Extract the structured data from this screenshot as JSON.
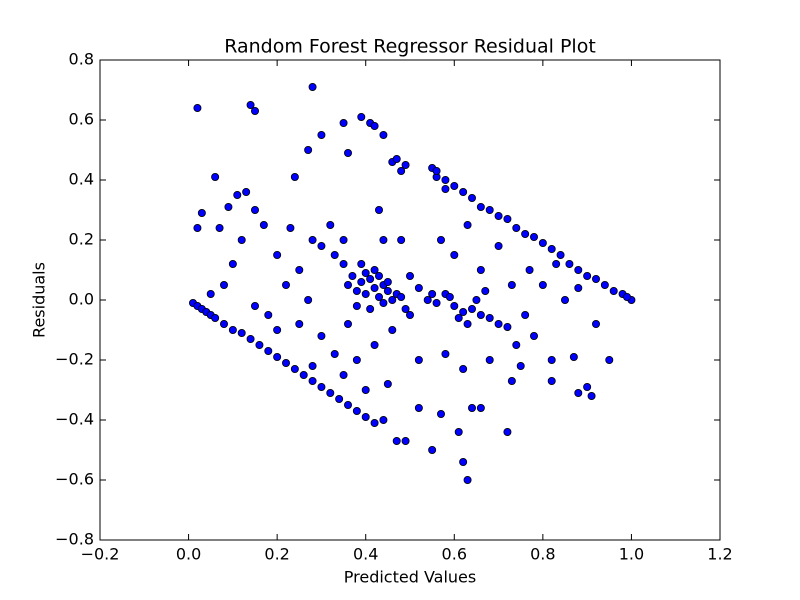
{
  "chart_data": {
    "type": "scatter",
    "title": "Random Forest Regressor Residual Plot",
    "x_label": "Predicted Values",
    "y_label": "Residuals",
    "color": "#0000ff",
    "xlim": [
      -0.2,
      1.2
    ],
    "ylim": [
      -0.8,
      0.8
    ],
    "xticks": [
      {
        "value": -0.2,
        "label": "−0.2"
      },
      {
        "value": 0.0,
        "label": "0.0"
      },
      {
        "value": 0.2,
        "label": "0.2"
      },
      {
        "value": 0.4,
        "label": "0.4"
      },
      {
        "value": 0.6,
        "label": "0.6"
      },
      {
        "value": 0.8,
        "label": "0.8"
      },
      {
        "value": 1.0,
        "label": "1.0"
      },
      {
        "value": 1.2,
        "label": "1.2"
      }
    ],
    "yticks": [
      {
        "value": -0.8,
        "label": "−0.8"
      },
      {
        "value": -0.6,
        "label": "−0.6"
      },
      {
        "value": -0.4,
        "label": "−0.4"
      },
      {
        "value": -0.2,
        "label": "−0.2"
      },
      {
        "value": 0.0,
        "label": "0.0"
      },
      {
        "value": 0.2,
        "label": "0.2"
      },
      {
        "value": 0.4,
        "label": "0.4"
      },
      {
        "value": 0.6,
        "label": "0.6"
      },
      {
        "value": 0.8,
        "label": "0.8"
      }
    ],
    "x": [
      0.02,
      0.14,
      0.15,
      0.28,
      0.3,
      0.27,
      0.35,
      0.36,
      0.39,
      0.41,
      0.42,
      0.44,
      0.46,
      0.47,
      0.48,
      0.49,
      0.55,
      0.56,
      0.58,
      0.06,
      0.24,
      0.62,
      0.63,
      0.55,
      0.61,
      0.72,
      0.57,
      0.64,
      0.66,
      0.47,
      0.49,
      0.52,
      0.9,
      0.91,
      0.88,
      0.95,
      0.87,
      0.82,
      0.75,
      0.73,
      0.01,
      0.02,
      0.03,
      0.04,
      0.05,
      0.06,
      0.08,
      0.1,
      0.12,
      0.14,
      0.16,
      0.18,
      0.2,
      0.22,
      0.24,
      0.26,
      0.28,
      0.3,
      0.32,
      0.34,
      0.36,
      0.38,
      0.4,
      0.42,
      0.44,
      0.56,
      0.58,
      0.6,
      0.62,
      0.64,
      0.66,
      0.68,
      0.7,
      0.72,
      0.74,
      0.76,
      0.78,
      0.8,
      0.82,
      0.84,
      0.86,
      0.88,
      0.9,
      0.92,
      0.94,
      0.96,
      0.98,
      1.0,
      0.99,
      0.36,
      0.37,
      0.38,
      0.39,
      0.4,
      0.41,
      0.42,
      0.43,
      0.44,
      0.45,
      0.46,
      0.47,
      0.48,
      0.4,
      0.42,
      0.35,
      0.33,
      0.38,
      0.41,
      0.44,
      0.39,
      0.43,
      0.45,
      0.49,
      0.5,
      0.54,
      0.56,
      0.58,
      0.6,
      0.62,
      0.64,
      0.66,
      0.68,
      0.7,
      0.72,
      0.55,
      0.59,
      0.61,
      0.63,
      0.65,
      0.67,
      0.05,
      0.08,
      0.1,
      0.12,
      0.15,
      0.17,
      0.09,
      0.2,
      0.22,
      0.25,
      0.28,
      0.3,
      0.32,
      0.35,
      0.18,
      0.15,
      0.25,
      0.3,
      0.33,
      0.35,
      0.38,
      0.42,
      0.45,
      0.4,
      0.28,
      0.2,
      0.23,
      0.48,
      0.52,
      0.57,
      0.6,
      0.63,
      0.66,
      0.7,
      0.73,
      0.77,
      0.8,
      0.83,
      0.85,
      0.88,
      0.92,
      0.78,
      0.74,
      0.68,
      0.62,
      0.58,
      0.82,
      0.76,
      0.13,
      0.11,
      0.07,
      0.02,
      0.03,
      0.43,
      0.44,
      0.5,
      0.52,
      0.46,
      0.36,
      0.27
    ],
    "values": [
      0.64,
      0.65,
      0.63,
      0.71,
      0.55,
      0.5,
      0.59,
      0.49,
      0.61,
      0.59,
      0.58,
      0.55,
      0.46,
      0.47,
      0.43,
      0.45,
      0.44,
      0.41,
      0.37,
      0.41,
      0.41,
      -0.54,
      -0.6,
      -0.5,
      -0.44,
      -0.44,
      -0.38,
      -0.36,
      -0.36,
      -0.47,
      -0.47,
      -0.36,
      -0.29,
      -0.32,
      -0.31,
      -0.2,
      -0.19,
      -0.27,
      -0.22,
      -0.27,
      -0.01,
      -0.02,
      -0.03,
      -0.04,
      -0.05,
      -0.06,
      -0.08,
      -0.1,
      -0.11,
      -0.13,
      -0.15,
      -0.17,
      -0.19,
      -0.21,
      -0.23,
      -0.25,
      -0.27,
      -0.29,
      -0.31,
      -0.33,
      -0.35,
      -0.37,
      -0.39,
      -0.41,
      -0.4,
      0.43,
      0.4,
      0.38,
      0.36,
      0.34,
      0.31,
      0.3,
      0.28,
      0.27,
      0.24,
      0.22,
      0.21,
      0.19,
      0.17,
      0.15,
      0.12,
      0.1,
      0.08,
      0.07,
      0.05,
      0.03,
      0.02,
      0.0,
      0.01,
      0.05,
      0.08,
      0.03,
      0.06,
      0.02,
      0.07,
      0.04,
      0.01,
      0.05,
      0.03,
      0.0,
      0.02,
      0.01,
      0.09,
      0.1,
      0.12,
      0.15,
      -0.02,
      -0.03,
      -0.01,
      0.12,
      0.08,
      0.06,
      -0.03,
      -0.05,
      0.0,
      -0.01,
      0.02,
      -0.02,
      -0.04,
      -0.03,
      -0.05,
      -0.06,
      -0.08,
      -0.09,
      0.02,
      0.01,
      -0.06,
      -0.08,
      0.0,
      0.03,
      0.02,
      0.05,
      0.12,
      0.2,
      0.3,
      0.25,
      0.31,
      0.15,
      0.05,
      0.1,
      0.2,
      0.18,
      0.25,
      0.2,
      -0.05,
      -0.02,
      -0.08,
      -0.12,
      -0.18,
      -0.25,
      -0.2,
      -0.15,
      -0.28,
      -0.3,
      -0.22,
      -0.1,
      0.24,
      0.2,
      -0.2,
      0.2,
      0.15,
      0.25,
      0.1,
      0.18,
      0.05,
      0.1,
      0.05,
      0.12,
      0.0,
      0.04,
      -0.08,
      -0.12,
      -0.15,
      -0.2,
      -0.23,
      -0.18,
      -0.2,
      -0.05,
      0.36,
      0.35,
      0.24,
      0.24,
      0.29,
      0.3,
      0.2,
      0.08,
      0.04,
      -0.1,
      -0.08,
      0.0
    ]
  }
}
